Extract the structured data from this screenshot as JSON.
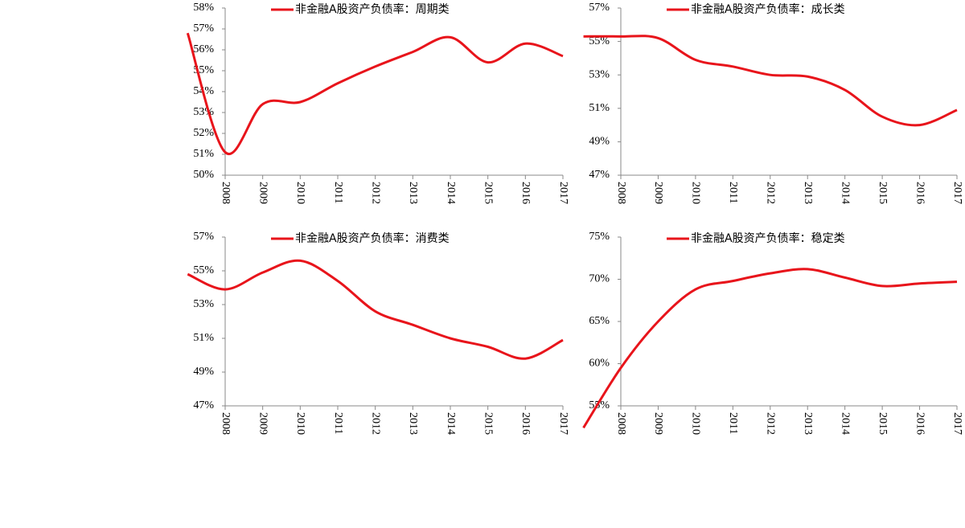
{
  "chart_data": [
    {
      "type": "line",
      "x": [
        2007,
        2008,
        2009,
        2010,
        2011,
        2012,
        2013,
        2014,
        2015,
        2016,
        2017
      ],
      "series": [
        {
          "name": "非金融A股资产负债率：周期类",
          "color": "#e8141b",
          "values": [
            56.8,
            51.1,
            53.4,
            53.5,
            54.4,
            55.2,
            55.9,
            56.6,
            55.4,
            56.3,
            55.7
          ]
        }
      ],
      "xlim": [
        2008,
        2017
      ],
      "xticks": [
        2008,
        2009,
        2010,
        2011,
        2012,
        2013,
        2014,
        2015,
        2016,
        2017
      ],
      "ylim": [
        50,
        58
      ],
      "yticks": [
        {
          "value": 50,
          "label": "50%"
        },
        {
          "value": 51,
          "label": "51%"
        },
        {
          "value": 52,
          "label": "52%"
        },
        {
          "value": 53,
          "label": "53%"
        },
        {
          "value": 54,
          "label": "54%"
        },
        {
          "value": 55,
          "label": "55%"
        },
        {
          "value": 56,
          "label": "56%"
        },
        {
          "value": 57,
          "label": "57%"
        },
        {
          "value": 58,
          "label": "58%"
        }
      ]
    },
    {
      "type": "line",
      "x": [
        2007,
        2008,
        2009,
        2010,
        2011,
        2012,
        2013,
        2014,
        2015,
        2016,
        2017
      ],
      "series": [
        {
          "name": "非金融A股资产负债率：成长类",
          "color": "#e8141b",
          "values": [
            55.3,
            55.3,
            55.2,
            53.9,
            53.5,
            53.0,
            52.9,
            52.1,
            50.5,
            50.0,
            50.9
          ]
        }
      ],
      "xlim": [
        2008,
        2017
      ],
      "xticks": [
        2008,
        2009,
        2010,
        2011,
        2012,
        2013,
        2014,
        2015,
        2016,
        2017
      ],
      "ylim": [
        47,
        57
      ],
      "yticks": [
        {
          "value": 47,
          "label": "47%"
        },
        {
          "value": 49,
          "label": "49%"
        },
        {
          "value": 51,
          "label": "51%"
        },
        {
          "value": 53,
          "label": "53%"
        },
        {
          "value": 55,
          "label": "55%"
        },
        {
          "value": 57,
          "label": "57%"
        }
      ]
    },
    {
      "type": "line",
      "x": [
        2007,
        2008,
        2009,
        2010,
        2011,
        2012,
        2013,
        2014,
        2015,
        2016,
        2017
      ],
      "series": [
        {
          "name": "非金融A股资产负债率：消费类",
          "color": "#e8141b",
          "values": [
            54.8,
            53.9,
            54.9,
            55.6,
            54.4,
            52.6,
            51.8,
            51.0,
            50.5,
            49.8,
            50.9
          ]
        }
      ],
      "xlim": [
        2008,
        2017
      ],
      "xticks": [
        2008,
        2009,
        2010,
        2011,
        2012,
        2013,
        2014,
        2015,
        2016,
        2017
      ],
      "ylim": [
        47,
        57
      ],
      "yticks": [
        {
          "value": 47,
          "label": "47%"
        },
        {
          "value": 49,
          "label": "49%"
        },
        {
          "value": 51,
          "label": "51%"
        },
        {
          "value": 53,
          "label": "53%"
        },
        {
          "value": 55,
          "label": "55%"
        },
        {
          "value": 57,
          "label": "57%"
        }
      ]
    },
    {
      "type": "line",
      "x": [
        2007,
        2008,
        2009,
        2010,
        2011,
        2012,
        2013,
        2014,
        2015,
        2016,
        2017
      ],
      "series": [
        {
          "name": "非金融A股资产负债率：稳定类",
          "color": "#e8141b",
          "values": [
            52.4,
            59.5,
            65.0,
            68.8,
            69.8,
            70.7,
            71.2,
            70.2,
            69.2,
            69.5,
            69.7
          ]
        }
      ],
      "xlim": [
        2008,
        2017
      ],
      "xticks": [
        2008,
        2009,
        2010,
        2011,
        2012,
        2013,
        2014,
        2015,
        2016,
        2017
      ],
      "ylim": [
        55,
        75
      ],
      "yticks": [
        {
          "value": 55,
          "label": "55%"
        },
        {
          "value": 60,
          "label": "60%"
        },
        {
          "value": 65,
          "label": "65%"
        },
        {
          "value": 70,
          "label": "70%"
        },
        {
          "value": 75,
          "label": "75%"
        }
      ]
    }
  ]
}
